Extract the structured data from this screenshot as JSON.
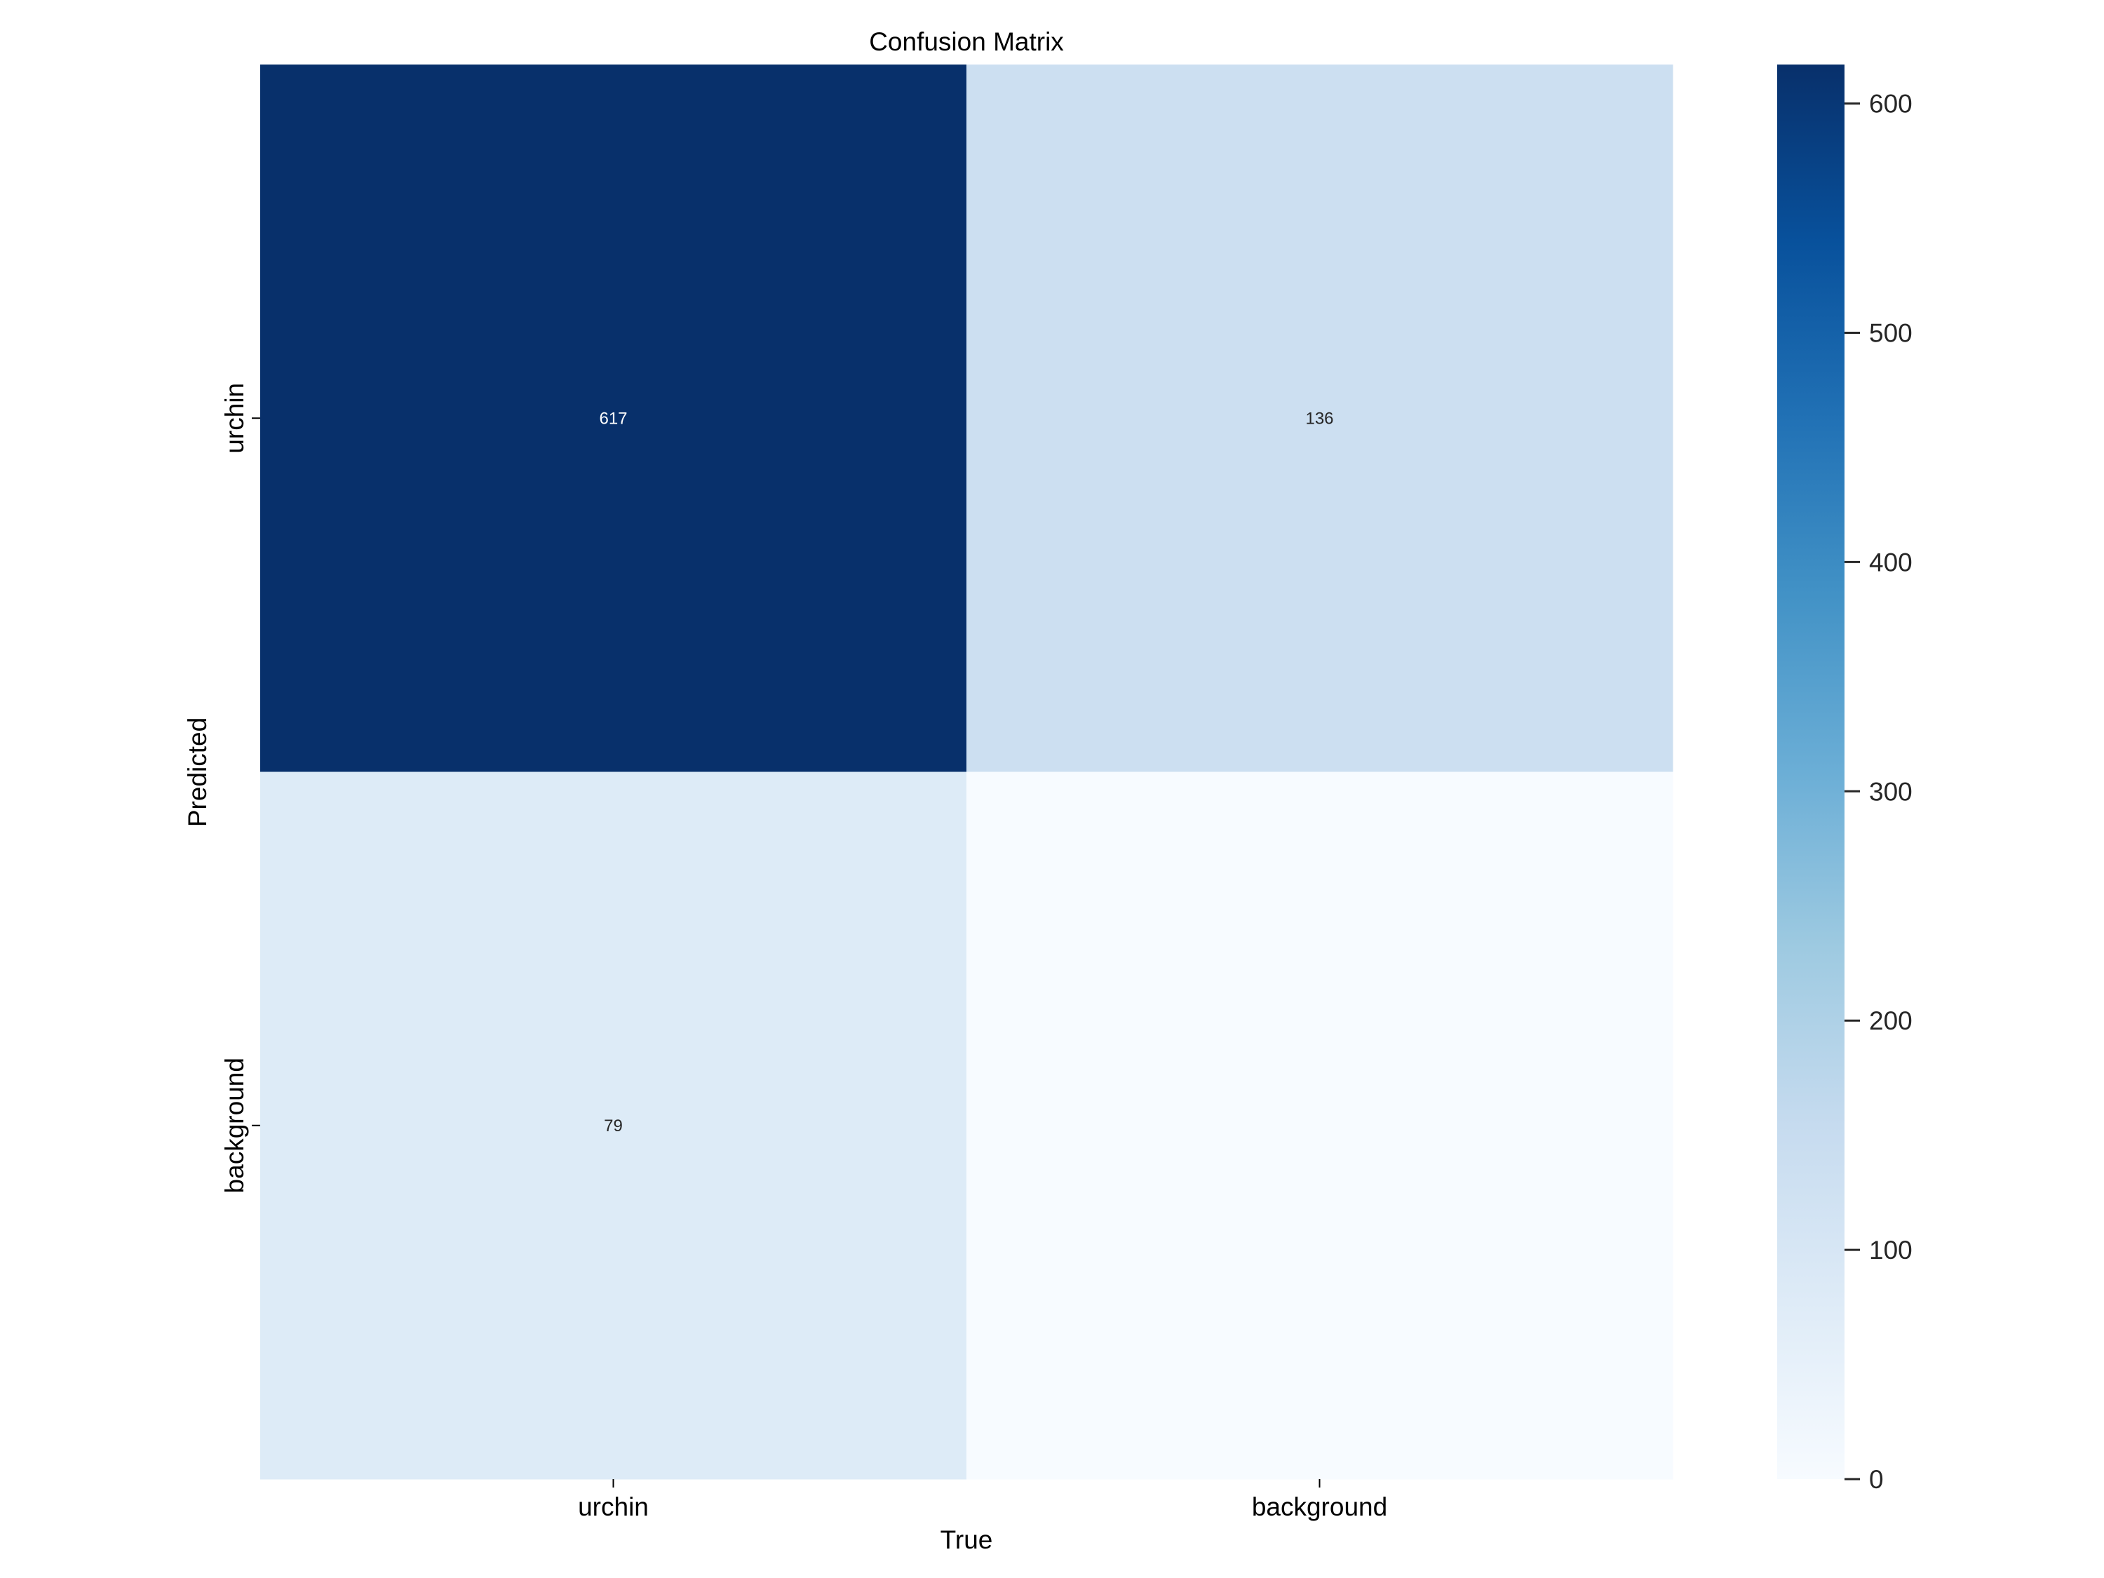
{
  "chart_data": {
    "type": "heatmap",
    "title": "Confusion Matrix",
    "xlabel": "True",
    "ylabel": "Predicted",
    "x_categories": [
      "urchin",
      "background"
    ],
    "y_categories": [
      "urchin",
      "background"
    ],
    "values": [
      [
        617,
        136
      ],
      [
        79,
        0
      ]
    ],
    "annotations": [
      [
        "617",
        "136"
      ],
      [
        "79",
        ""
      ]
    ],
    "colormap": "Blues",
    "colorbar": {
      "range": [
        0,
        617
      ],
      "ticks": [
        0,
        100,
        200,
        300,
        400,
        500,
        600
      ],
      "tick_labels": [
        "0",
        "100",
        "200",
        "300",
        "400",
        "500",
        "600"
      ]
    },
    "colors": {
      "blues_stops": [
        "#f7fbff",
        "#deebf7",
        "#c6dbef",
        "#9ecae1",
        "#6baed6",
        "#4292c6",
        "#2171b5",
        "#08519c",
        "#08306b"
      ],
      "annotation_dark": "#ffffff",
      "annotation_light": "#262626"
    },
    "grid": false
  }
}
